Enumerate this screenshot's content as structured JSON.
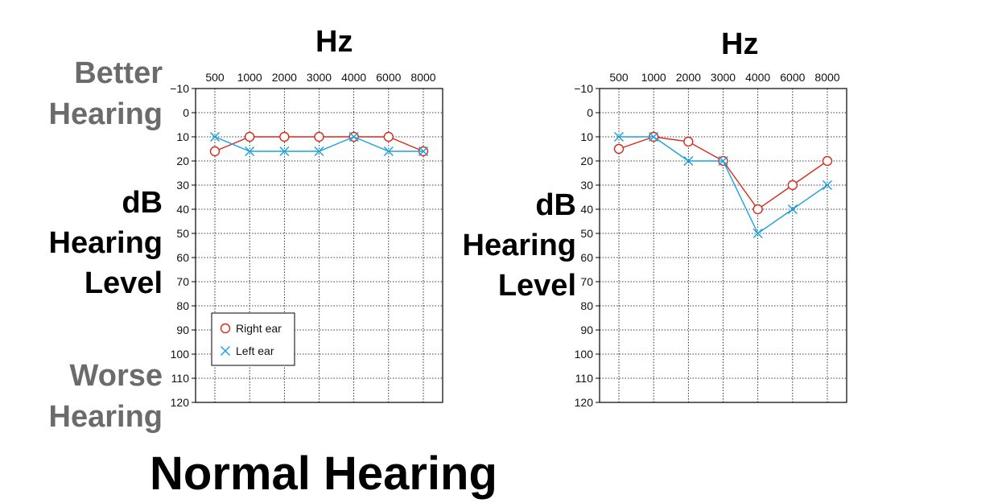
{
  "page": {
    "better_line1": "Better",
    "better_line2": "Hearing",
    "worse_line1": "Worse",
    "worse_line2": "Hearing",
    "footer_title": "Normal Hearing"
  },
  "colors": {
    "right_ear": "#d62b1f",
    "left_ear": "#1aa3dc",
    "grid": "#000000",
    "grey_text": "#6b6b6b"
  },
  "chart_data": [
    {
      "type": "line",
      "title": "",
      "xlabel": "Hz",
      "ylabel_lines": [
        "dB",
        "Hearing",
        "Level"
      ],
      "categories": [
        "500",
        "1000",
        "2000",
        "3000",
        "4000",
        "6000",
        "8000"
      ],
      "y_ticks": [
        "−10",
        "0",
        "10",
        "20",
        "30",
        "40",
        "50",
        "60",
        "70",
        "80",
        "90",
        "100",
        "110",
        "120"
      ],
      "ylim": [
        -10,
        120
      ],
      "y_inverted": true,
      "grid": true,
      "legend": {
        "placement": "bottom-left",
        "entries": [
          "Right ear",
          "Left ear"
        ]
      },
      "series": [
        {
          "name": "Right ear",
          "marker": "circle",
          "values": [
            16,
            10,
            10,
            10,
            10,
            10,
            16
          ]
        },
        {
          "name": "Left ear",
          "marker": "x",
          "values": [
            10,
            16,
            16,
            16,
            10,
            16,
            16
          ]
        }
      ]
    },
    {
      "type": "line",
      "title": "",
      "xlabel": "Hz",
      "ylabel_lines": [
        "dB",
        "Hearing",
        "Level"
      ],
      "categories": [
        "500",
        "1000",
        "2000",
        "3000",
        "4000",
        "6000",
        "8000"
      ],
      "y_ticks": [
        "−10",
        "0",
        "10",
        "20",
        "30",
        "40",
        "50",
        "60",
        "70",
        "80",
        "90",
        "100",
        "110",
        "120"
      ],
      "ylim": [
        -10,
        120
      ],
      "y_inverted": true,
      "grid": true,
      "legend": null,
      "series": [
        {
          "name": "Right ear",
          "marker": "circle",
          "values": [
            15,
            10,
            12,
            20,
            40,
            30,
            20
          ]
        },
        {
          "name": "Left ear",
          "marker": "x",
          "values": [
            10,
            10,
            20,
            20,
            50,
            40,
            30
          ]
        }
      ]
    }
  ]
}
